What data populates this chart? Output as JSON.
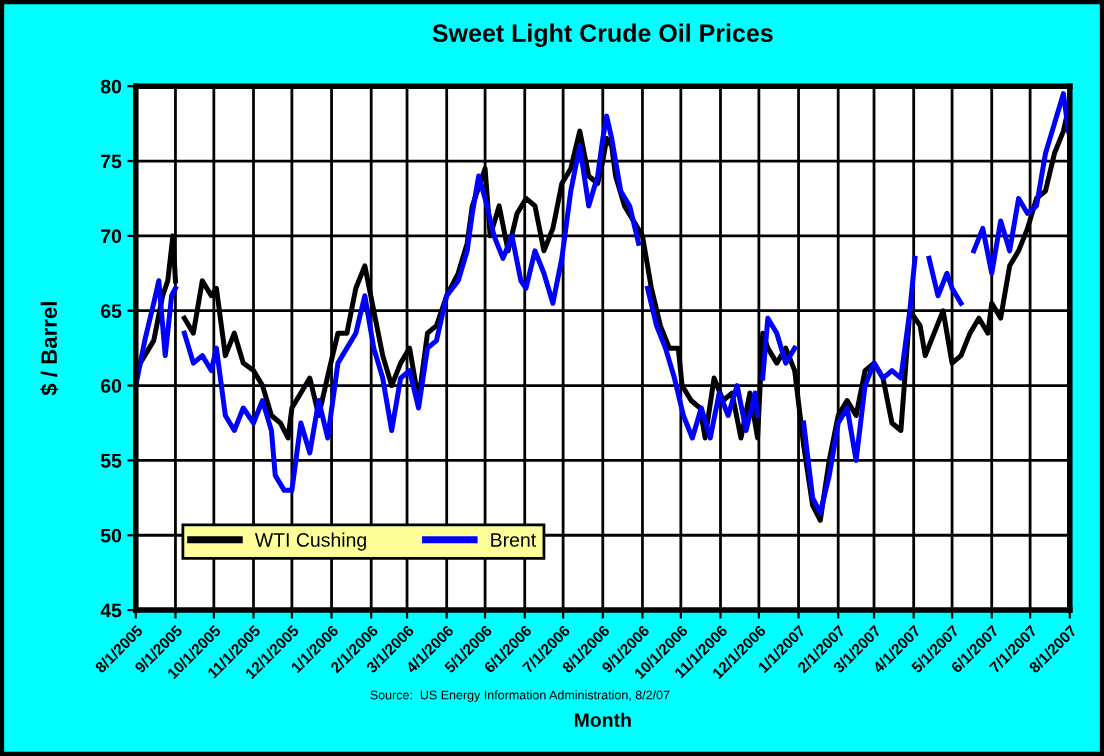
{
  "chart_data": {
    "type": "line",
    "title": "Sweet Light Crude Oil Prices",
    "xlabel": "Month",
    "ylabel": "$ / Barrel",
    "annotations": [
      "Source:  US Energy Information Administration, 8/2/07"
    ],
    "series": [
      {
        "name": "WTI Cushing",
        "color": "#000000",
        "x": [
          "2005-08-01",
          "2005-08-08",
          "2005-08-15",
          "2005-08-22",
          "2005-08-26",
          "2005-08-30",
          "2005-09-01",
          "2005-09-05",
          "2005-09-08",
          "2005-09-15",
          "2005-09-22",
          "2005-09-29",
          "2005-10-03",
          "2005-10-10",
          "2005-10-17",
          "2005-10-24",
          "2005-11-01",
          "2005-11-08",
          "2005-11-15",
          "2005-11-22",
          "2005-11-28",
          "2005-12-01",
          "2005-12-08",
          "2005-12-15",
          "2005-12-22",
          "2005-12-30",
          "2006-01-06",
          "2006-01-13",
          "2006-01-20",
          "2006-01-27",
          "2006-02-03",
          "2006-02-10",
          "2006-02-17",
          "2006-02-24",
          "2006-03-03",
          "2006-03-10",
          "2006-03-17",
          "2006-03-24",
          "2006-04-01",
          "2006-04-10",
          "2006-04-17",
          "2006-04-21",
          "2006-05-01",
          "2006-05-05",
          "2006-05-12",
          "2006-05-19",
          "2006-05-26",
          "2006-06-02",
          "2006-06-09",
          "2006-06-16",
          "2006-06-23",
          "2006-06-30",
          "2006-07-07",
          "2006-07-14",
          "2006-07-21",
          "2006-07-28",
          "2006-08-01",
          "2006-08-04",
          "2006-08-08",
          "2006-08-11",
          "2006-08-18",
          "2006-08-25",
          "2006-09-01",
          "2006-09-08",
          "2006-09-15",
          "2006-09-22",
          "2006-09-29",
          "2006-10-02",
          "2006-10-09",
          "2006-10-16",
          "2006-10-20",
          "2006-10-27",
          "2006-11-03",
          "2006-11-10",
          "2006-11-17",
          "2006-11-24",
          "2006-11-30",
          "2006-12-04",
          "2006-12-08",
          "2006-12-15",
          "2006-12-22",
          "2006-12-29",
          "2007-01-05",
          "2007-01-12",
          "2007-01-18",
          "2007-01-25",
          "2007-02-01",
          "2007-02-08",
          "2007-02-15",
          "2007-02-22",
          "2007-03-01",
          "2007-03-08",
          "2007-03-15",
          "2007-03-22",
          "2007-03-29",
          "2007-04-02",
          "2007-04-06",
          "2007-04-10",
          "2007-04-17",
          "2007-04-24",
          "2007-05-01",
          "2007-05-08",
          "2007-05-15",
          "2007-05-22",
          "2007-05-29",
          "2007-06-01",
          "2007-06-08",
          "2007-06-15",
          "2007-06-22",
          "2007-06-29",
          "2007-07-06",
          "2007-07-13",
          "2007-07-20",
          "2007-07-27",
          "2007-07-31"
        ],
        "values": [
          61,
          62,
          63,
          66,
          67,
          70,
          67,
          null,
          64.5,
          63.5,
          67,
          66,
          66.5,
          62,
          63.5,
          61.5,
          61,
          60,
          58,
          57.5,
          56.5,
          58.5,
          59.5,
          60.5,
          58,
          61,
          63.5,
          63.5,
          66.5,
          68,
          65,
          62,
          60,
          61.5,
          62.5,
          59,
          63.5,
          64,
          66,
          67.5,
          69.5,
          72,
          74.5,
          70,
          72,
          69,
          71.5,
          72.5,
          72,
          69,
          70.5,
          73.5,
          74.5,
          77,
          74,
          73.5,
          75,
          76.5,
          76,
          74,
          72,
          71,
          70,
          66.5,
          64,
          62.5,
          62.5,
          60,
          59,
          58.5,
          56.5,
          60.5,
          59,
          59.5,
          56.5,
          59.5,
          56.5,
          63.5,
          62.5,
          61.5,
          62.5,
          61,
          56,
          52,
          51,
          55,
          58,
          59,
          58,
          61,
          61.5,
          60.5,
          57.5,
          57,
          65,
          64.5,
          64,
          62,
          63.5,
          65,
          61.5,
          62,
          63.5,
          64.5,
          63.5,
          65.5,
          64.5,
          68,
          69,
          70.5,
          72.5,
          73,
          75.5,
          77,
          78.5
        ]
      },
      {
        "name": "Brent",
        "color": "#0000ff",
        "x": [
          "2005-08-01",
          "2005-08-08",
          "2005-08-15",
          "2005-08-19",
          "2005-08-24",
          "2005-08-29",
          "2005-09-01",
          "2005-09-05",
          "2005-09-08",
          "2005-09-15",
          "2005-09-22",
          "2005-09-29",
          "2005-10-03",
          "2005-10-10",
          "2005-10-17",
          "2005-10-24",
          "2005-11-01",
          "2005-11-08",
          "2005-11-15",
          "2005-11-18",
          "2005-11-25",
          "2005-12-01",
          "2005-12-08",
          "2005-12-15",
          "2005-12-22",
          "2005-12-29",
          "2006-01-06",
          "2006-01-13",
          "2006-01-20",
          "2006-01-27",
          "2006-02-03",
          "2006-02-10",
          "2006-02-17",
          "2006-02-24",
          "2006-03-03",
          "2006-03-10",
          "2006-03-17",
          "2006-03-24",
          "2006-04-01",
          "2006-04-10",
          "2006-04-17",
          "2006-04-21",
          "2006-04-26",
          "2006-05-01",
          "2006-05-08",
          "2006-05-15",
          "2006-05-22",
          "2006-05-29",
          "2006-06-02",
          "2006-06-09",
          "2006-06-16",
          "2006-06-23",
          "2006-06-30",
          "2006-07-07",
          "2006-07-14",
          "2006-07-21",
          "2006-07-28",
          "2006-08-01",
          "2006-08-04",
          "2006-08-08",
          "2006-08-15",
          "2006-08-22",
          "2006-08-29",
          "2006-09-01",
          "2006-09-05",
          "2006-09-12",
          "2006-09-19",
          "2006-09-26",
          "2006-10-03",
          "2006-10-10",
          "2006-10-17",
          "2006-10-24",
          "2006-10-31",
          "2006-11-07",
          "2006-11-14",
          "2006-11-21",
          "2006-11-28",
          "2006-11-30",
          "2006-12-01",
          "2006-12-04",
          "2006-12-08",
          "2006-12-15",
          "2006-12-22",
          "2006-12-29",
          "2007-01-02",
          "2007-01-05",
          "2007-01-12",
          "2007-01-18",
          "2007-01-25",
          "2007-02-01",
          "2007-02-08",
          "2007-02-15",
          "2007-02-22",
          "2007-03-01",
          "2007-03-08",
          "2007-03-15",
          "2007-03-22",
          "2007-03-29",
          "2007-04-02",
          "2007-04-09",
          "2007-04-13",
          "2007-04-20",
          "2007-04-27",
          "2007-05-01",
          "2007-05-08",
          "2007-05-12",
          "2007-05-18",
          "2007-05-25",
          "2007-06-01",
          "2007-06-08",
          "2007-06-15",
          "2007-06-22",
          "2007-06-29",
          "2007-07-06",
          "2007-07-13",
          "2007-07-20",
          "2007-07-27",
          "2007-07-31"
        ],
        "values": [
          60,
          63,
          65.5,
          67,
          62,
          66,
          66.5,
          null,
          63.5,
          61.5,
          62,
          61,
          62.5,
          58,
          57,
          58.5,
          57.5,
          59,
          57,
          54,
          53,
          53,
          57.5,
          55.5,
          59,
          56.5,
          61.5,
          62.5,
          63.5,
          66,
          62.5,
          60.5,
          57,
          60.5,
          61,
          58.5,
          62.5,
          63,
          66,
          67,
          69,
          71.5,
          74,
          72.5,
          70,
          68.5,
          70,
          67,
          66.5,
          69,
          67.5,
          65.5,
          68.5,
          73,
          76,
          72,
          74,
          76.5,
          78,
          76.5,
          73,
          72,
          69.5,
          null,
          66.5,
          64,
          62.5,
          60.5,
          58,
          56.5,
          58.5,
          56.5,
          59.5,
          58,
          60,
          57,
          59.5,
          58,
          null,
          60.5,
          64.5,
          63.5,
          61.5,
          62.5,
          null,
          57.5,
          52.5,
          51.5,
          54,
          57.5,
          58.5,
          55,
          60,
          61.5,
          60.5,
          61,
          60.5,
          65,
          68.5,
          null,
          68.5,
          66,
          67.5,
          66.5,
          65.5,
          null,
          69,
          70.5,
          67.5,
          71,
          69,
          72.5,
          71.5,
          72,
          75.5,
          77.5,
          79.5,
          77
        ]
      }
    ],
    "xlim": [
      "2005-08-01",
      "2007-08-01"
    ],
    "xticks": [
      {
        "value": "2005-08-01",
        "label": "8/1/2005"
      },
      {
        "value": "2005-09-01",
        "label": "9/1/2005"
      },
      {
        "value": "2005-10-01",
        "label": "10/1/2005"
      },
      {
        "value": "2005-11-01",
        "label": "11/1/2005"
      },
      {
        "value": "2005-12-01",
        "label": "12/1/2005"
      },
      {
        "value": "2006-01-01",
        "label": "1/1/2006"
      },
      {
        "value": "2006-02-01",
        "label": "2/1/2006"
      },
      {
        "value": "2006-03-01",
        "label": "3/1/2006"
      },
      {
        "value": "2006-04-01",
        "label": "4/1/2006"
      },
      {
        "value": "2006-05-01",
        "label": "5/1/2006"
      },
      {
        "value": "2006-06-01",
        "label": "6/1/2006"
      },
      {
        "value": "2006-07-01",
        "label": "7/1/2006"
      },
      {
        "value": "2006-08-01",
        "label": "8/1/2006"
      },
      {
        "value": "2006-09-01",
        "label": "9/1/2006"
      },
      {
        "value": "2006-10-01",
        "label": "10/1/2006"
      },
      {
        "value": "2006-11-01",
        "label": "11/1/2006"
      },
      {
        "value": "2006-12-01",
        "label": "12/1/2006"
      },
      {
        "value": "2007-01-01",
        "label": "1/1/2007"
      },
      {
        "value": "2007-02-01",
        "label": "2/1/2007"
      },
      {
        "value": "2007-03-01",
        "label": "3/1/2007"
      },
      {
        "value": "2007-04-01",
        "label": "4/1/2007"
      },
      {
        "value": "2007-05-01",
        "label": "5/1/2007"
      },
      {
        "value": "2007-06-01",
        "label": "6/1/2007"
      },
      {
        "value": "2007-07-01",
        "label": "7/1/2007"
      },
      {
        "value": "2007-08-01",
        "label": "8/1/2007"
      }
    ],
    "ylim": [
      45,
      80
    ],
    "yticks": [
      45,
      50,
      55,
      60,
      65,
      70,
      75,
      80
    ],
    "grid": true,
    "legend": "bottom left",
    "marker": "none",
    "line_style": "solid"
  }
}
